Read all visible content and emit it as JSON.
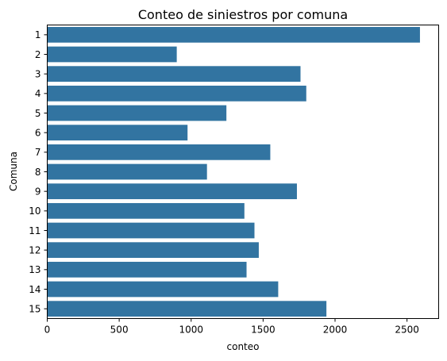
{
  "chart_data": {
    "type": "bar",
    "orientation": "horizontal",
    "title": "Conteo de siniestros por comuna",
    "xlabel": "conteo",
    "ylabel": "Comuna",
    "categories": [
      "1",
      "2",
      "3",
      "4",
      "5",
      "6",
      "7",
      "8",
      "9",
      "10",
      "11",
      "12",
      "13",
      "14",
      "15"
    ],
    "values": [
      2590,
      900,
      1760,
      1800,
      1245,
      975,
      1550,
      1110,
      1735,
      1370,
      1440,
      1470,
      1385,
      1605,
      1940
    ],
    "xlim": [
      0,
      2720
    ],
    "xticks": [
      "0",
      "500",
      "1000",
      "1500",
      "2000",
      "2500"
    ],
    "xtick_values": [
      0,
      500,
      1000,
      1500,
      2000,
      2500
    ],
    "bar_color": "#3274a1",
    "grid": false,
    "legend": "none"
  }
}
